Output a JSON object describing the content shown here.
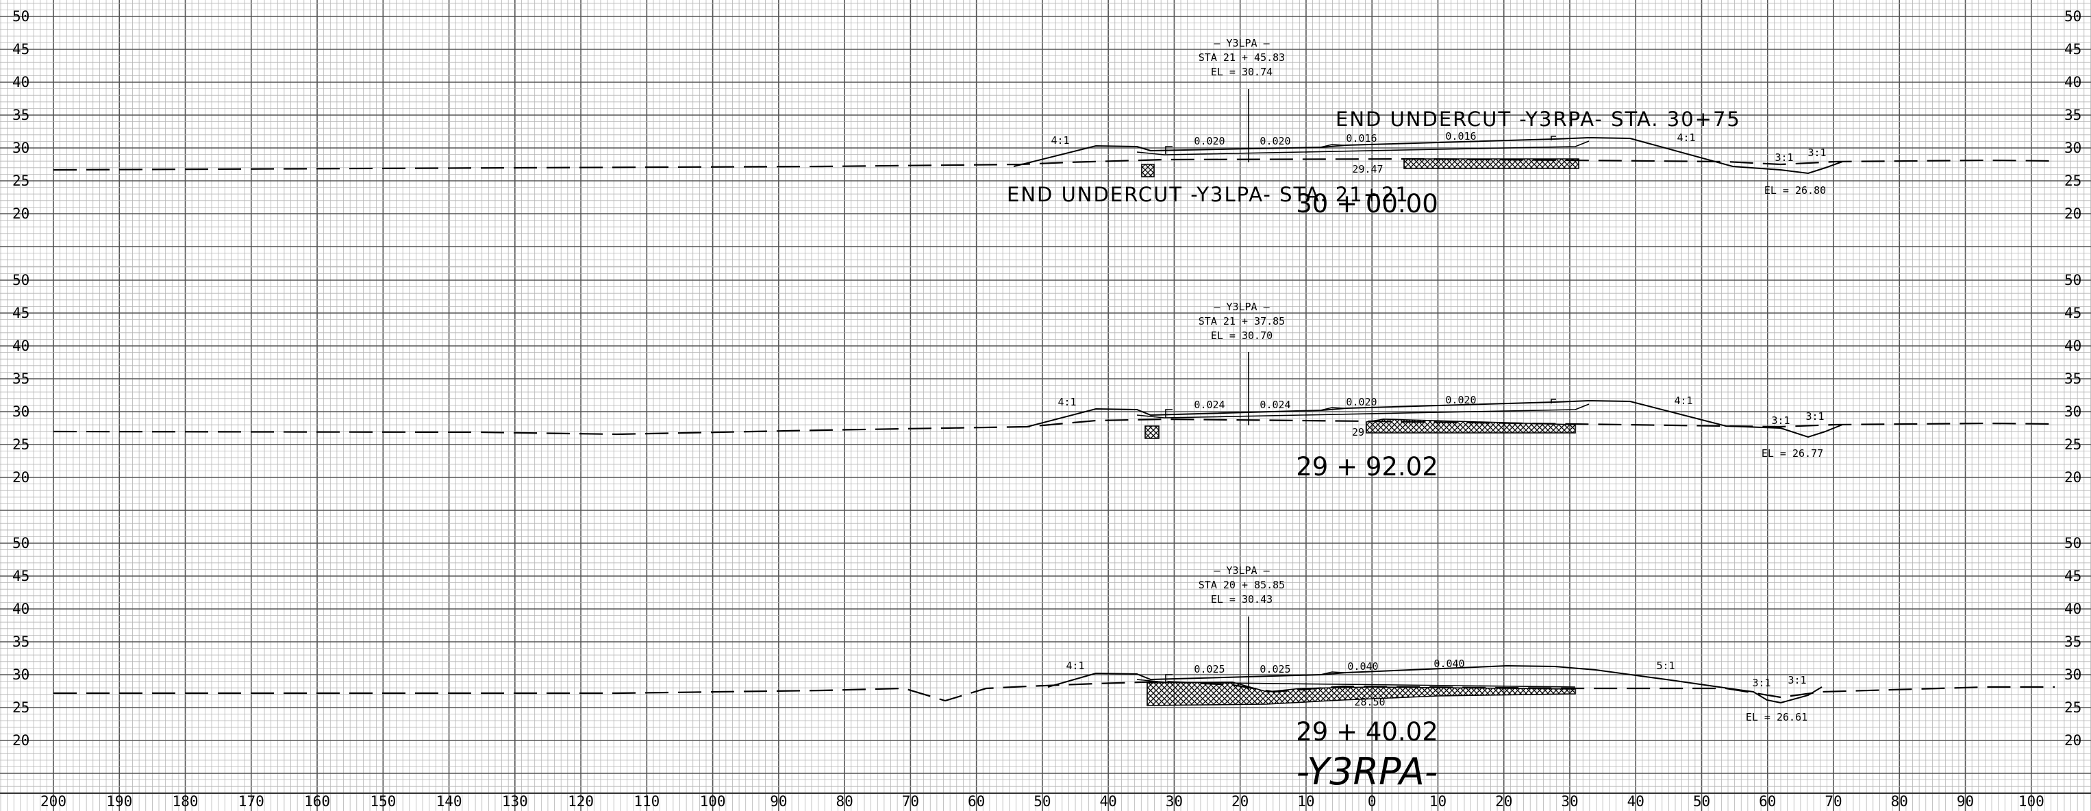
{
  "sheet": {
    "title": "-Y3RPA-",
    "bottom_axis_labels": [
      "200",
      "190",
      "180",
      "170",
      "160",
      "150",
      "140",
      "130",
      "120",
      "110",
      "100",
      "90",
      "80",
      "70",
      "60",
      "50",
      "40",
      "30",
      "20",
      "10",
      "0",
      "10",
      "20",
      "30",
      "40",
      "50",
      "60",
      "70",
      "80",
      "90",
      "100"
    ],
    "elevation_labels": [
      "50",
      "45",
      "40",
      "35",
      "30",
      "25",
      "20"
    ]
  },
  "sections": [
    {
      "station": "30 + 00.00",
      "callout": {
        "line1": "– Y3LPA –",
        "line2": "STA  21 + 45.83",
        "line3": "EL = 30.74"
      },
      "slopes": [
        "0.020",
        "0.020",
        "0.016",
        "0.016"
      ],
      "side_slopes": [
        "4:1",
        "4:1",
        "3:1",
        "3:1"
      ],
      "ditch_el": "EL = 26.80",
      "note": "29.47",
      "labels": [
        "END UNDERCUT -Y3RPA- STA. 30+75",
        "END UNDERCUT -Y3LPA- STA. 21+21"
      ]
    },
    {
      "station": "29 + 92.02",
      "callout": {
        "line1": "– Y3LPA –",
        "line2": "STA  21 + 37.85",
        "line3": "EL = 30.70"
      },
      "slopes": [
        "0.024",
        "0.024",
        "0.020",
        "0.020"
      ],
      "side_slopes": [
        "4:1",
        "4:1",
        "3:1",
        "3:1"
      ],
      "ditch_el": "EL = 26.77",
      "note": "29"
    },
    {
      "station": "29 + 40.02",
      "callout": {
        "line1": "– Y3LPA –",
        "line2": "STA  20 + 85.85",
        "line3": "EL = 30.43"
      },
      "slopes": [
        "0.025",
        "0.025",
        "0.040",
        "0.040"
      ],
      "side_slopes": [
        "4:1",
        "5:1",
        "3:1",
        "3:1"
      ],
      "ditch_el": "EL = 26.61",
      "note": "28.50"
    }
  ]
}
